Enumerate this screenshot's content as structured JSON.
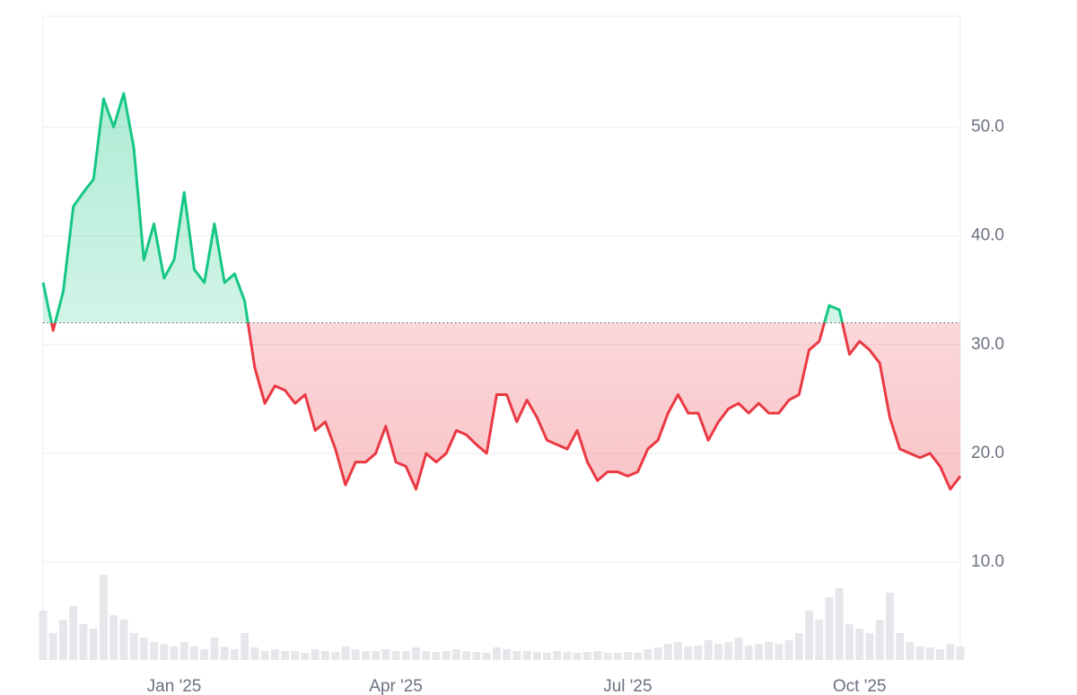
{
  "chart_data": {
    "type": "line",
    "categories": [
      null,
      null,
      null,
      null,
      null,
      null,
      null,
      null,
      null,
      null,
      null,
      null,
      null,
      "Jan '25",
      null,
      null,
      null,
      null,
      null,
      null,
      null,
      null,
      null,
      null,
      null,
      null,
      null,
      null,
      null,
      null,
      null,
      null,
      null,
      null,
      null,
      "Apr '25",
      null,
      null,
      null,
      null,
      null,
      null,
      null,
      null,
      null,
      null,
      null,
      null,
      null,
      null,
      null,
      null,
      null,
      null,
      null,
      null,
      null,
      null,
      "Jul '25",
      null,
      null,
      null,
      null,
      null,
      null,
      null,
      null,
      null,
      null,
      null,
      null,
      null,
      null,
      null,
      null,
      null,
      null,
      null,
      null,
      null,
      null,
      "Oct '25",
      null,
      null,
      null,
      null,
      null,
      null,
      null,
      null,
      null,
      null
    ],
    "series": [
      {
        "values": [
          35.7,
          31.3,
          34.9,
          42.7,
          44.0,
          45.2,
          52.6,
          50.0,
          53.1,
          48.1,
          37.8,
          41.1,
          36.1,
          37.8,
          44.0,
          36.9,
          35.7,
          41.1,
          35.7,
          36.5,
          34.0,
          27.9,
          24.6,
          26.2,
          25.8,
          24.6,
          25.4,
          22.1,
          22.9,
          20.4,
          17.1,
          19.2,
          19.2,
          20.0,
          22.5,
          19.2,
          18.8,
          16.7,
          20.0,
          19.2,
          20.0,
          22.1,
          21.7,
          20.8,
          20.0,
          25.4,
          25.4,
          22.9,
          24.9,
          23.3,
          21.2,
          20.8,
          20.4,
          22.1,
          19.2,
          17.5,
          18.3,
          18.3,
          17.9,
          18.3,
          20.4,
          21.2,
          23.7,
          25.4,
          23.7,
          23.7,
          21.2,
          22.9,
          24.1,
          24.6,
          23.7,
          24.6,
          23.7,
          23.7,
          24.9,
          25.4,
          29.5,
          30.3,
          33.6,
          33.2,
          29.1,
          30.3,
          29.5,
          28.3,
          23.3,
          20.4,
          20.0,
          19.6,
          20.0,
          18.8,
          16.7,
          17.9
        ]
      }
    ],
    "baseline": 32,
    "up_color": "#16c784",
    "down_color": "#ea3943",
    "volume": {
      "color": "#e5e7eb",
      "ylim": [
        0,
        100
      ],
      "values": [
        55,
        30,
        45,
        60,
        40,
        35,
        95,
        50,
        45,
        30,
        25,
        20,
        18,
        15,
        20,
        15,
        12,
        25,
        15,
        12,
        30,
        14,
        10,
        12,
        10,
        10,
        8,
        12,
        10,
        9,
        15,
        12,
        10,
        10,
        12,
        10,
        10,
        14,
        10,
        9,
        10,
        12,
        10,
        9,
        8,
        14,
        12,
        10,
        10,
        9,
        8,
        10,
        9,
        8,
        9,
        10,
        8,
        8,
        9,
        8,
        12,
        14,
        18,
        20,
        15,
        16,
        22,
        18,
        20,
        25,
        16,
        18,
        20,
        18,
        22,
        30,
        55,
        45,
        70,
        80,
        40,
        35,
        30,
        45,
        75,
        30,
        20,
        15,
        14,
        12,
        18,
        15
      ]
    },
    "ylim": [
      1,
      60.2
    ],
    "yticks": [
      {
        "value": 10,
        "label": "10.0"
      },
      {
        "value": 20,
        "label": "20.0"
      },
      {
        "value": 30,
        "label": "30.0"
      },
      {
        "value": 40,
        "label": "40.0"
      },
      {
        "value": 50,
        "label": "50.0"
      }
    ],
    "grid": true
  }
}
